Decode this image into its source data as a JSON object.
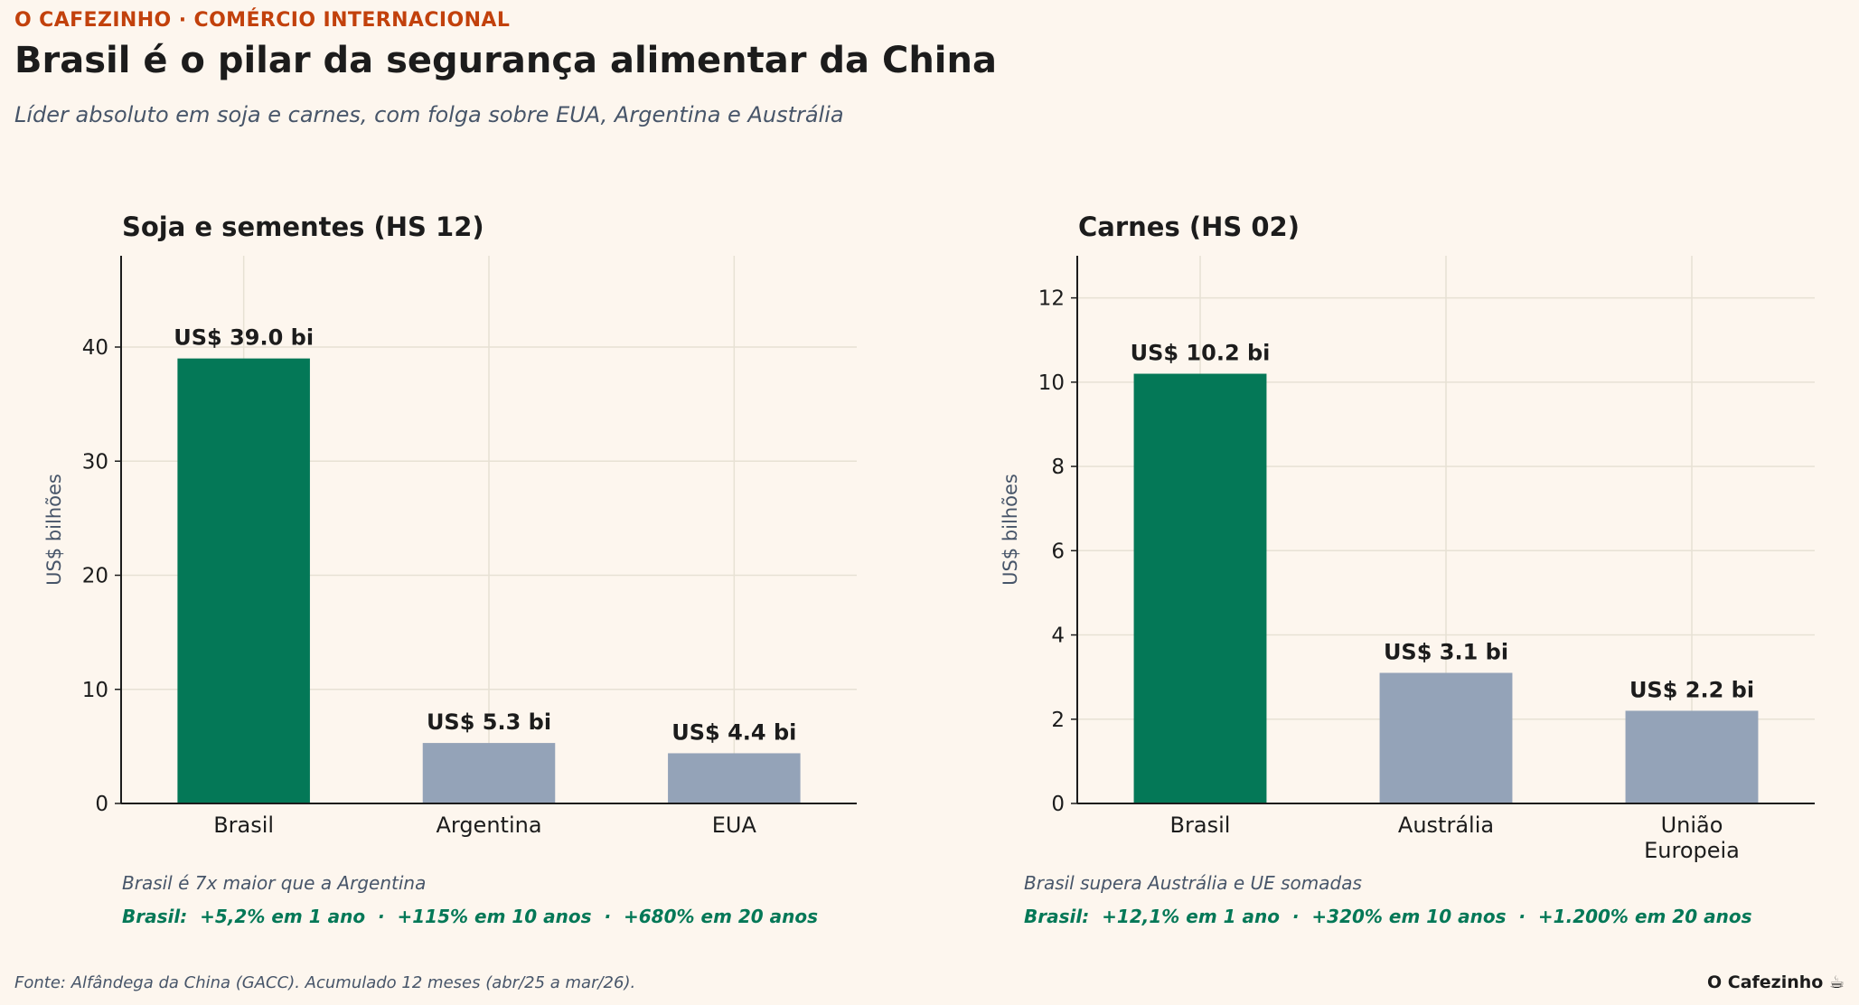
{
  "header": {
    "kicker": "O CAFEZINHO · COMÉRCIO INTERNACIONAL",
    "title": "Brasil é o pilar da segurança alimentar da China",
    "subtitle": "Líder absoluto em soja e carnes, com folga sobre EUA, Argentina e Austrália"
  },
  "chart_data": [
    {
      "type": "bar",
      "title": "Soja e sementes (HS 12)",
      "ylabel": "US$ bilhões",
      "ylim": [
        0,
        48
      ],
      "yticks": [
        0,
        10,
        20,
        30,
        40
      ],
      "grid": true,
      "categories": [
        "Brasil",
        "Argentina",
        "EUA"
      ],
      "values": [
        39.0,
        5.3,
        4.4
      ],
      "data_labels": [
        "US$ 39.0 bi",
        "US$ 5.3 bi",
        "US$ 4.4 bi"
      ],
      "colors": [
        "#047857",
        "#94a3b8",
        "#94a3b8"
      ],
      "note": "Brasil é 7x maior que a Argentina",
      "growth": "Brasil:  +5,2% em 1 ano  ·  +115% em 10 anos  ·  +680% em 20 anos"
    },
    {
      "type": "bar",
      "title": "Carnes (HS 02)",
      "ylabel": "US$ bilhões",
      "ylim": [
        0,
        13
      ],
      "yticks": [
        0,
        2,
        4,
        6,
        8,
        10,
        12
      ],
      "grid": true,
      "categories": [
        "Brasil",
        "Austrália",
        "União\nEuropeia"
      ],
      "values": [
        10.2,
        3.1,
        2.2
      ],
      "data_labels": [
        "US$ 10.2 bi",
        "US$ 3.1 bi",
        "US$ 2.2 bi"
      ],
      "colors": [
        "#047857",
        "#94a3b8",
        "#94a3b8"
      ],
      "note": "Brasil supera Austrália e UE somadas",
      "growth": "Brasil:  +12,1% em 1 ano  ·  +320% em 10 anos  ·  +1.200% em 20 anos"
    }
  ],
  "footer": {
    "source": "Fonte: Alfândega da China (GACC). Acumulado 12 meses (abr/25 a mar/26).",
    "brand": "O Cafezinho ☕"
  }
}
